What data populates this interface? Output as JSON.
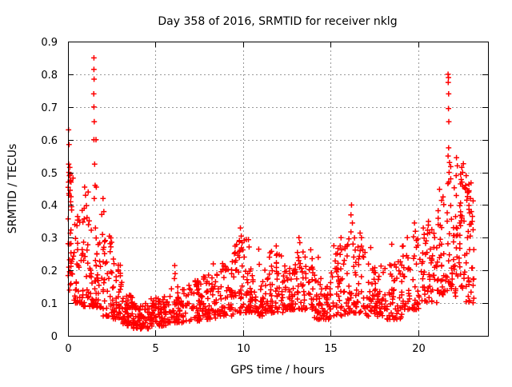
{
  "chart_data": {
    "type": "scatter",
    "title": "Day 358 of 2016, SRMTID for receiver nklg",
    "xlabel": "GPS time / hours",
    "ylabel": "SRMTID / TECUs",
    "xlim": [
      0,
      24
    ],
    "ylim": [
      0,
      0.9
    ],
    "xticks": [
      0,
      5,
      10,
      15,
      20
    ],
    "yticks": [
      0,
      0.1,
      0.2,
      0.3,
      0.4,
      0.5,
      0.6,
      0.7,
      0.8,
      0.9
    ],
    "grid": true,
    "legend": "none",
    "marker": "plus",
    "colors": {
      "marker": "#ff0000",
      "grid": "#999999",
      "axis": "#000000",
      "background": "#ffffff"
    },
    "series": [
      {
        "name": "SRMTID",
        "notable_points": [
          [
            0.03,
            0.63
          ],
          [
            0.06,
            0.585
          ],
          [
            0.04,
            0.525
          ],
          [
            0.1,
            0.515
          ],
          [
            0.05,
            0.5
          ],
          [
            0.08,
            0.49
          ],
          [
            0.03,
            0.47
          ],
          [
            0.12,
            0.445
          ],
          [
            0.07,
            0.43
          ],
          [
            0.15,
            0.41
          ],
          [
            0.2,
            0.395
          ],
          [
            0.95,
            0.455
          ],
          [
            1.0,
            0.43
          ],
          [
            1.15,
            0.44
          ],
          [
            1.48,
            0.85
          ],
          [
            1.48,
            0.815
          ],
          [
            1.49,
            0.785
          ],
          [
            1.47,
            0.74
          ],
          [
            1.48,
            0.7
          ],
          [
            1.5,
            0.655
          ],
          [
            1.48,
            0.6
          ],
          [
            1.52,
            0.525
          ],
          [
            1.6,
            0.6
          ],
          [
            1.62,
            0.455
          ],
          [
            1.55,
            0.46
          ],
          [
            1.5,
            0.42
          ],
          [
            2.0,
            0.42
          ],
          [
            2.05,
            0.38
          ],
          [
            6.08,
            0.175
          ],
          [
            6.1,
            0.215
          ],
          [
            6.12,
            0.19
          ],
          [
            8.3,
            0.22
          ],
          [
            9.85,
            0.33
          ],
          [
            9.9,
            0.305
          ],
          [
            9.95,
            0.285
          ],
          [
            10.9,
            0.265
          ],
          [
            11.9,
            0.275
          ],
          [
            11.95,
            0.25
          ],
          [
            13.2,
            0.3
          ],
          [
            13.25,
            0.285
          ],
          [
            14.3,
            0.24
          ],
          [
            15.55,
            0.275
          ],
          [
            15.6,
            0.3
          ],
          [
            16.17,
            0.37
          ],
          [
            16.2,
            0.4
          ],
          [
            16.25,
            0.345
          ],
          [
            17.3,
            0.27
          ],
          [
            18.5,
            0.28
          ],
          [
            19.8,
            0.345
          ],
          [
            19.85,
            0.32
          ],
          [
            20.3,
            0.33
          ],
          [
            20.6,
            0.35
          ],
          [
            21.72,
            0.8
          ],
          [
            21.74,
            0.79
          ],
          [
            21.73,
            0.775
          ],
          [
            21.75,
            0.74
          ],
          [
            21.74,
            0.695
          ],
          [
            21.76,
            0.655
          ],
          [
            21.75,
            0.575
          ],
          [
            21.72,
            0.55
          ],
          [
            21.8,
            0.53
          ],
          [
            21.78,
            0.5
          ],
          [
            21.76,
            0.47
          ],
          [
            22.18,
            0.49
          ],
          [
            22.2,
            0.545
          ],
          [
            22.25,
            0.52
          ],
          [
            22.5,
            0.515
          ],
          [
            22.55,
            0.5
          ],
          [
            22.72,
            0.46
          ],
          [
            22.75,
            0.49
          ],
          [
            22.9,
            0.44
          ],
          [
            23.0,
            0.42
          ],
          [
            23.05,
            0.38
          ],
          [
            23.1,
            0.35
          ]
        ],
        "density_bins": {
          "columns": [
            "x_start",
            "x_end",
            "count",
            "y_min",
            "y_max",
            "skew_toward_min"
          ],
          "rows": [
            [
              0.0,
              0.3,
              30,
              0.14,
              0.5,
              1.5
            ],
            [
              0.3,
              0.8,
              34,
              0.1,
              0.38,
              1.7
            ],
            [
              0.8,
              1.2,
              30,
              0.09,
              0.44,
              1.8
            ],
            [
              1.2,
              1.6,
              30,
              0.09,
              0.4,
              1.7
            ],
            [
              1.6,
              2.0,
              28,
              0.08,
              0.44,
              1.6
            ],
            [
              2.0,
              2.5,
              36,
              0.06,
              0.33,
              1.8
            ],
            [
              2.5,
              3.1,
              46,
              0.05,
              0.24,
              1.9
            ],
            [
              3.1,
              3.7,
              52,
              0.03,
              0.13,
              1.4
            ],
            [
              3.7,
              4.7,
              78,
              0.02,
              0.1,
              1.3
            ],
            [
              4.7,
              5.7,
              70,
              0.03,
              0.12,
              1.4
            ],
            [
              5.7,
              6.7,
              60,
              0.04,
              0.15,
              1.6
            ],
            [
              6.7,
              7.7,
              60,
              0.045,
              0.17,
              1.6
            ],
            [
              7.7,
              8.7,
              60,
              0.05,
              0.19,
              1.6
            ],
            [
              8.7,
              9.5,
              52,
              0.06,
              0.23,
              1.7
            ],
            [
              9.5,
              10.4,
              60,
              0.07,
              0.3,
              1.8
            ],
            [
              10.4,
              11.3,
              56,
              0.06,
              0.22,
              1.6
            ],
            [
              11.3,
              12.3,
              60,
              0.07,
              0.26,
              1.7
            ],
            [
              12.3,
              13.1,
              55,
              0.08,
              0.22,
              1.5
            ],
            [
              13.1,
              14.0,
              56,
              0.08,
              0.27,
              1.7
            ],
            [
              14.0,
              15.1,
              62,
              0.05,
              0.2,
              1.5
            ],
            [
              15.1,
              16.0,
              52,
              0.06,
              0.28,
              1.7
            ],
            [
              16.0,
              17.0,
              58,
              0.07,
              0.33,
              1.8
            ],
            [
              17.0,
              18.1,
              62,
              0.06,
              0.24,
              1.6
            ],
            [
              18.1,
              19.1,
              56,
              0.05,
              0.23,
              1.6
            ],
            [
              19.1,
              20.1,
              58,
              0.08,
              0.31,
              1.7
            ],
            [
              20.1,
              21.1,
              56,
              0.1,
              0.34,
              1.6
            ],
            [
              21.1,
              21.7,
              40,
              0.12,
              0.46,
              1.5
            ],
            [
              21.7,
              22.1,
              28,
              0.14,
              0.52,
              1.3
            ],
            [
              22.1,
              22.7,
              46,
              0.12,
              0.53,
              1.4
            ],
            [
              22.7,
              23.2,
              40,
              0.1,
              0.48,
              1.4
            ]
          ]
        }
      }
    ]
  }
}
